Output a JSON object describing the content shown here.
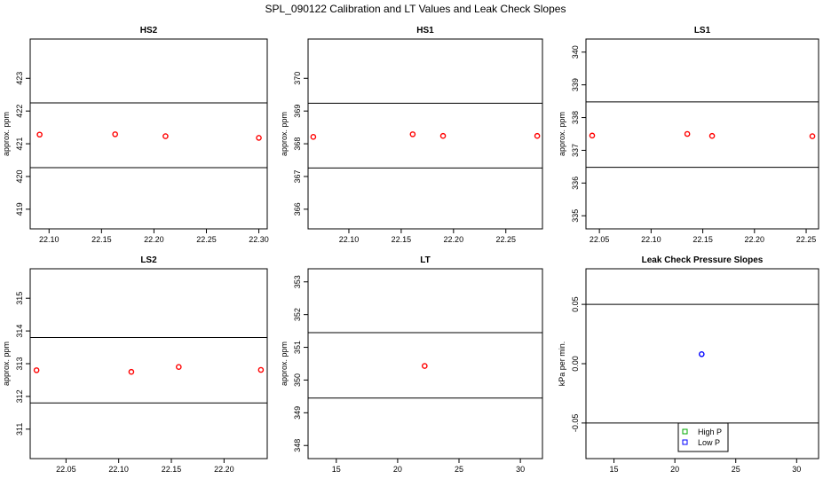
{
  "figure": {
    "title": "SPL_090122  Calibration and LT Values and Leak Check Slopes"
  },
  "chart_data": [
    {
      "type": "scatter",
      "title": "HS2",
      "xlabel": "",
      "ylabel": "approx. ppm",
      "xlim": [
        22.082,
        22.308
      ],
      "ylim": [
        418.4,
        424.2
      ],
      "xticks": [
        "22.10",
        "22.15",
        "22.20",
        "22.25",
        "22.30"
      ],
      "yticks": [
        "419",
        "420",
        "421",
        "422",
        "423"
      ],
      "hlines": [
        420.27,
        422.25
      ],
      "point_color": "#ff0000",
      "points": [
        [
          22.091,
          421.28
        ],
        [
          22.163,
          421.29
        ],
        [
          22.211,
          421.23
        ],
        [
          22.3,
          421.18
        ]
      ]
    },
    {
      "type": "scatter",
      "title": "HS1",
      "xlabel": "",
      "ylabel": "approx. ppm",
      "xlim": [
        22.061,
        22.285
      ],
      "ylim": [
        365.4,
        371.2
      ],
      "xticks": [
        "22.10",
        "22.15",
        "22.20",
        "22.25"
      ],
      "yticks": [
        "366",
        "367",
        "368",
        "369",
        "370"
      ],
      "hlines": [
        367.26,
        369.24
      ],
      "point_color": "#ff0000",
      "points": [
        [
          22.066,
          368.21
        ],
        [
          22.161,
          368.29
        ],
        [
          22.19,
          368.24
        ],
        [
          22.28,
          368.24
        ]
      ]
    },
    {
      "type": "scatter",
      "title": "LS1",
      "xlabel": "",
      "ylabel": "approx. ppm",
      "xlim": [
        22.037,
        22.262
      ],
      "ylim": [
        334.6,
        340.4
      ],
      "xticks": [
        "22.05",
        "22.10",
        "22.15",
        "22.20",
        "22.25"
      ],
      "yticks": [
        "335",
        "336",
        "337",
        "338",
        "339",
        "340"
      ],
      "hlines": [
        336.48,
        338.48
      ],
      "point_color": "#ff0000",
      "points": [
        [
          22.043,
          337.45
        ],
        [
          22.135,
          337.5
        ],
        [
          22.159,
          337.44
        ],
        [
          22.256,
          337.43
        ]
      ]
    },
    {
      "type": "scatter",
      "title": "LS2",
      "xlabel": "",
      "ylabel": "approx. ppm",
      "xlim": [
        22.016,
        22.241
      ],
      "ylim": [
        310.1,
        315.9
      ],
      "xticks": [
        "22.05",
        "22.10",
        "22.15",
        "22.20"
      ],
      "yticks": [
        "311",
        "312",
        "313",
        "314",
        "315"
      ],
      "hlines": [
        311.8,
        313.8
      ],
      "point_color": "#ff0000",
      "points": [
        [
          22.022,
          312.8
        ],
        [
          22.112,
          312.75
        ],
        [
          22.157,
          312.9
        ],
        [
          22.235,
          312.81
        ]
      ]
    },
    {
      "type": "scatter",
      "title": "LT",
      "xlabel": "",
      "ylabel": "approx. ppm",
      "xlim": [
        12.7,
        31.8
      ],
      "ylim": [
        347.6,
        353.4
      ],
      "xticks": [
        "15",
        "20",
        "25",
        "30"
      ],
      "yticks": [
        "348",
        "349",
        "350",
        "351",
        "352",
        "353"
      ],
      "hlines": [
        349.45,
        351.45
      ],
      "point_color": "#ff0000",
      "points": [
        [
          22.2,
          350.43
        ]
      ]
    },
    {
      "type": "scatter",
      "title": "Leak Check Pressure Slopes",
      "xlabel": "",
      "ylabel": "kPa per min.",
      "xlim": [
        12.7,
        31.8
      ],
      "ylim": [
        -0.08,
        0.08
      ],
      "xticks": [
        "15",
        "20",
        "25",
        "30"
      ],
      "yticks": [
        "-0.05",
        "0.00",
        "0.05"
      ],
      "hlines": [
        -0.05,
        0.05
      ],
      "point_color": "#0000ff",
      "points": [
        [
          22.2,
          0.008
        ]
      ],
      "legend": {
        "position": "bottom-center",
        "entries": [
          {
            "label": "High P",
            "color": "#00aa00"
          },
          {
            "label": "Low P",
            "color": "#0000ff"
          }
        ]
      }
    }
  ]
}
